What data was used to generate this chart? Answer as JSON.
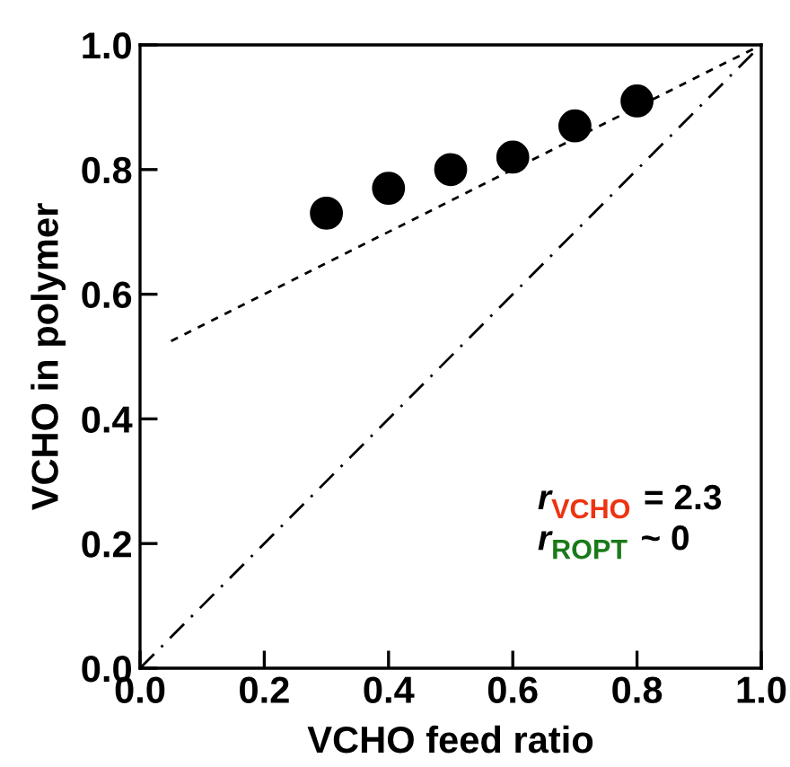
{
  "chart_data": {
    "type": "scatter",
    "xlabel": "VCHO feed ratio",
    "ylabel": "VCHO in polymer",
    "series": [
      {
        "color": "#000000",
        "x": [
          0.3,
          0.4,
          0.5,
          0.6,
          0.7,
          0.8
        ],
        "values": [
          0.73,
          0.77,
          0.8,
          0.82,
          0.87,
          0.91
        ],
        "marker": "circle"
      },
      {
        "type": "line",
        "color": "#000000",
        "x": [
          0.05,
          1.0
        ],
        "values": [
          0.525,
          1.0
        ],
        "line_style": "dashed"
      },
      {
        "type": "line",
        "color": "#000000",
        "x": [
          0.0,
          1.0
        ],
        "values": [
          0.0,
          1.0
        ],
        "line_style": "dashdot"
      }
    ],
    "xlim": [
      0,
      1
    ],
    "ylim": [
      0,
      1
    ],
    "xticks": [
      {
        "value": 0,
        "label": "0.0"
      },
      0.2,
      0.4,
      0.6,
      0.8,
      {
        "value": 1,
        "label": "1.0"
      }
    ],
    "yticks": [
      {
        "value": 0,
        "label": "0.0"
      },
      0.2,
      0.4,
      0.6,
      0.8,
      {
        "value": 1,
        "label": "1.0"
      }
    ],
    "annotations": [
      "r$_{VCHO}$ = 2.3",
      "r$_{ROPT}$ ~ 0"
    ],
    "grid": false,
    "legend": false
  }
}
